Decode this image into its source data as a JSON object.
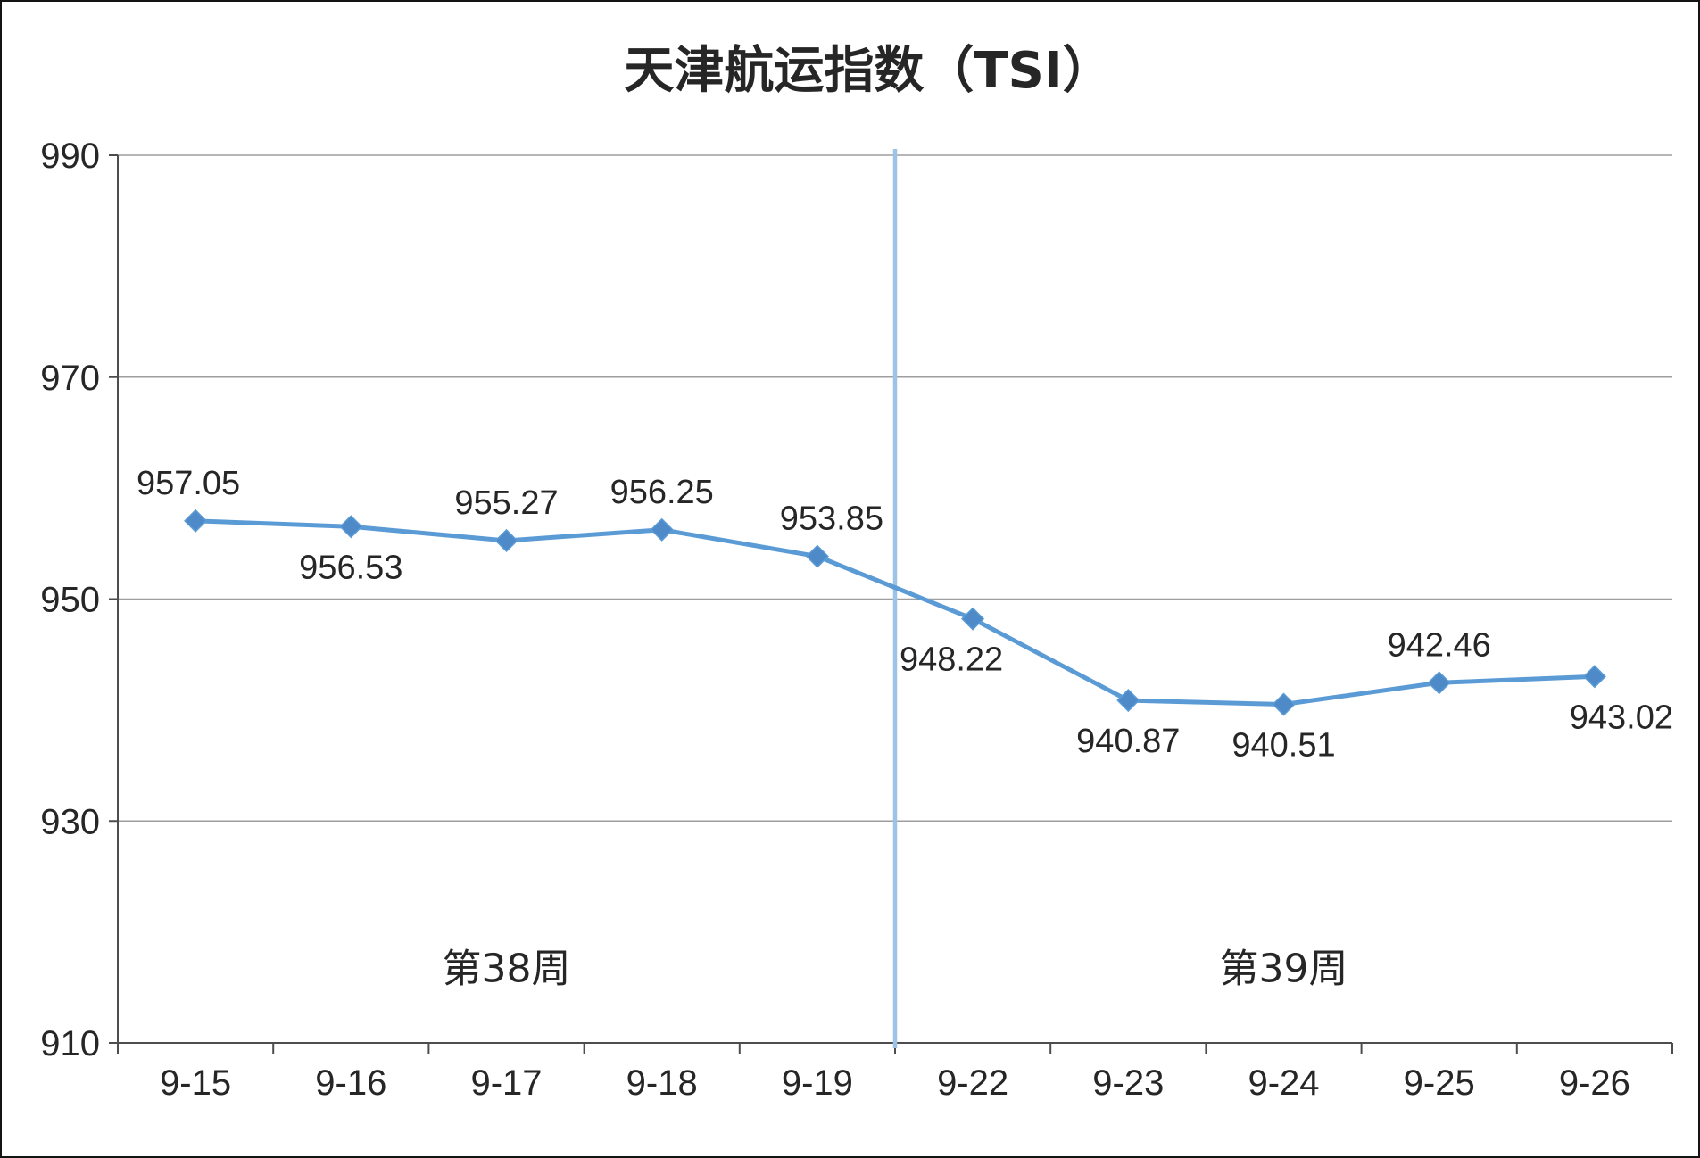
{
  "chart_data": {
    "type": "line",
    "title": "天津航运指数（TSI）",
    "categories": [
      "9-15",
      "9-16",
      "9-17",
      "9-18",
      "9-19",
      "9-22",
      "9-23",
      "9-24",
      "9-25",
      "9-26"
    ],
    "series": [
      {
        "name": "TSI",
        "values": [
          957.05,
          956.53,
          955.27,
          956.25,
          953.85,
          948.22,
          940.87,
          940.51,
          942.46,
          943.02
        ],
        "point_labels": [
          "957.05",
          "956.53",
          "955.27",
          "956.25",
          "953.85",
          "948.22",
          "940.87",
          "940.51",
          "942.46",
          "943.02"
        ],
        "label_side": [
          "above",
          "below",
          "above",
          "above",
          "above",
          "below",
          "below",
          "below",
          "above",
          "below"
        ],
        "label_dx": [
          -8,
          0,
          0,
          0,
          16,
          -24,
          0,
          0,
          0,
          30
        ]
      }
    ],
    "ylim": [
      910,
      990
    ],
    "yticks": [
      910,
      930,
      950,
      970,
      990
    ],
    "grid": true,
    "legend_position": "none",
    "divider_after_index": 4,
    "annotations": [
      {
        "text": "第38周",
        "x_fraction": 0.25,
        "y_value": 915.5
      },
      {
        "text": "第39周",
        "x_fraction": 0.75,
        "y_value": 915.5
      }
    ],
    "colors": {
      "line": "#5B9BD5",
      "marker": "#4E8AC8",
      "divider": "#9DC3E6",
      "gridline": "#9E9E9E",
      "axis": "#4D4D4D",
      "text": "#262626"
    }
  }
}
